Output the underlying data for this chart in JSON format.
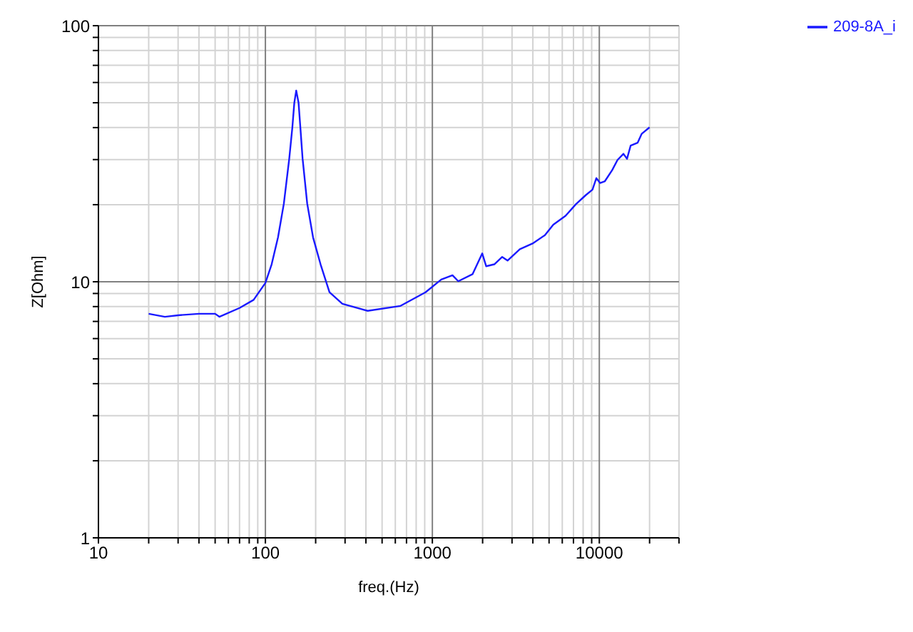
{
  "chart_data": {
    "type": "line",
    "xlabel": "freq.(Hz)",
    "ylabel": "Z[Ohm]",
    "log": "xy",
    "grid": true,
    "legend": "top right",
    "xlim": [
      10,
      30000
    ],
    "xticks": [
      10,
      {
        "value": 20,
        "label": null
      },
      {
        "value": 30,
        "label": null
      },
      {
        "value": 40,
        "label": null
      },
      {
        "value": 50,
        "label": null
      },
      {
        "value": 60,
        "label": null
      },
      {
        "value": 70,
        "label": null
      },
      {
        "value": 80,
        "label": null
      },
      {
        "value": 90,
        "label": null
      },
      100,
      {
        "value": 200,
        "label": null
      },
      {
        "value": 300,
        "label": null
      },
      {
        "value": 400,
        "label": null
      },
      {
        "value": 500,
        "label": null
      },
      {
        "value": 600,
        "label": null
      },
      {
        "value": 700,
        "label": null
      },
      {
        "value": 800,
        "label": null
      },
      {
        "value": 900,
        "label": null
      },
      1000,
      {
        "value": 2000,
        "label": null
      },
      {
        "value": 3000,
        "label": null
      },
      {
        "value": 4000,
        "label": null
      },
      {
        "value": 5000,
        "label": null
      },
      {
        "value": 6000,
        "label": null
      },
      {
        "value": 7000,
        "label": null
      },
      {
        "value": 8000,
        "label": null
      },
      {
        "value": 9000,
        "label": null
      },
      10000,
      {
        "value": 20000,
        "label": null
      },
      {
        "value": 30000,
        "label": null
      }
    ],
    "ylim": [
      1,
      100
    ],
    "yticks": [
      1,
      {
        "value": 2,
        "label": null
      },
      {
        "value": 3,
        "label": null
      },
      {
        "value": 4,
        "label": null
      },
      {
        "value": 5,
        "label": null
      },
      {
        "value": 6,
        "label": null
      },
      {
        "value": 7,
        "label": null
      },
      {
        "value": 8,
        "label": null
      },
      {
        "value": 9,
        "label": null
      },
      10,
      {
        "value": 20,
        "label": null
      },
      {
        "value": 30,
        "label": null
      },
      {
        "value": 40,
        "label": null
      },
      {
        "value": 50,
        "label": null
      },
      {
        "value": 60,
        "label": null
      },
      {
        "value": 70,
        "label": null
      },
      {
        "value": 80,
        "label": null
      },
      {
        "value": 90,
        "label": null
      },
      100
    ],
    "x": [
      20,
      25,
      30,
      40,
      50,
      53,
      70,
      85,
      100,
      109,
      119,
      129,
      139,
      145,
      149,
      153,
      158,
      162,
      167,
      178,
      193,
      214,
      242,
      289,
      410,
      645,
      910,
      1130,
      1320,
      1430,
      1740,
      1990,
      2100,
      2350,
      2620,
      2820,
      3340,
      3980,
      4720,
      5300,
      6280,
      7250,
      8300,
      9100,
      9600,
      10100,
      10800,
      11950,
      12850,
      13950,
      14650,
      15400,
      16950,
      17930,
      20000
    ],
    "series": [
      {
        "name": "209-8A_i",
        "color": "#1a1aff",
        "values": [
          7.5,
          7.3,
          7.4,
          7.5,
          7.5,
          7.3,
          7.9,
          8.5,
          9.9,
          11.7,
          14.9,
          20.2,
          30.3,
          40,
          50,
          55.8,
          50,
          40,
          30.3,
          20.2,
          14.9,
          11.7,
          9.1,
          8.2,
          7.7,
          8.05,
          9.1,
          10.2,
          10.6,
          10.05,
          10.7,
          12.9,
          11.5,
          11.7,
          12.5,
          12.1,
          13.4,
          14.1,
          15.2,
          16.7,
          18.1,
          20.1,
          21.8,
          22.9,
          25.4,
          24.3,
          24.7,
          27.3,
          29.9,
          31.6,
          30.2,
          34,
          34.9,
          37.8,
          40.1
        ]
      }
    ]
  }
}
